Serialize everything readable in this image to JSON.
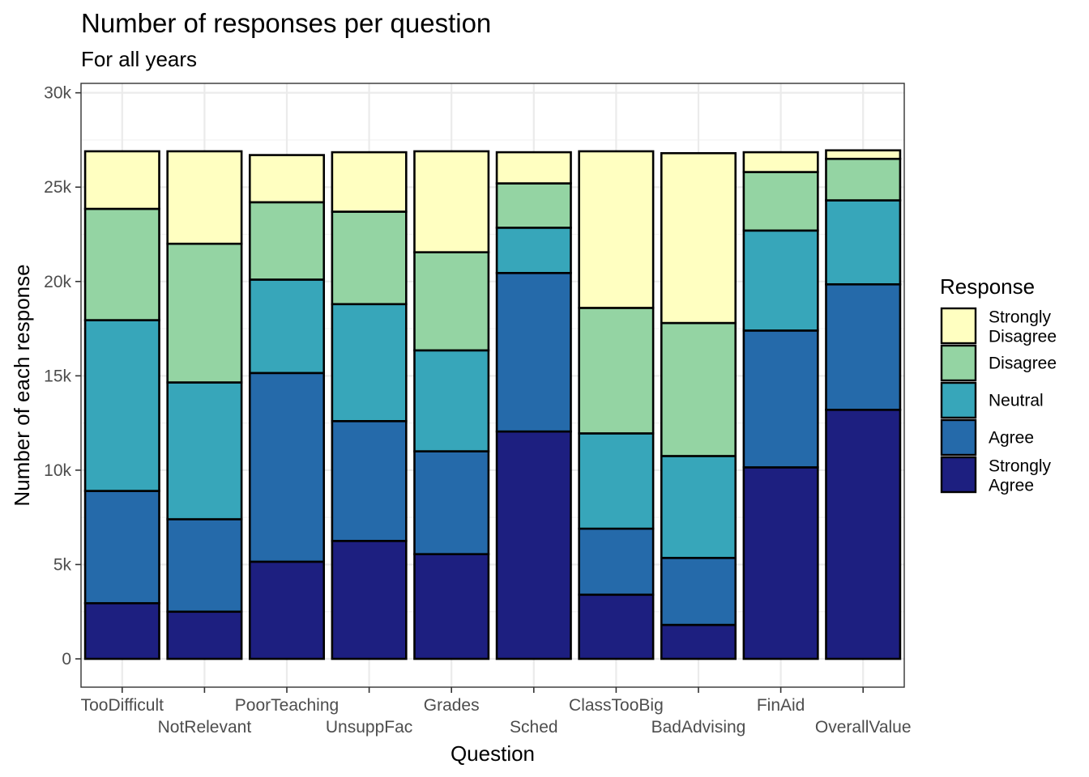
{
  "chart_data": {
    "type": "bar",
    "stacked": true,
    "title": "Number of responses per question",
    "subtitle": "For all years",
    "xlabel": "Question",
    "ylabel": "Number of each response",
    "ylim": [
      -1500,
      30500
    ],
    "y_ticks": [
      0,
      5000,
      10000,
      15000,
      20000,
      25000,
      30000
    ],
    "y_tick_labels": [
      "0",
      "5k",
      "10k",
      "15k",
      "20k",
      "25k",
      "30k"
    ],
    "grid": true,
    "legend_position": "right",
    "legend_title": "Response",
    "categories": [
      "TooDifficult",
      "NotRelevant",
      "PoorTeaching",
      "UnsuppFac",
      "Grades",
      "Sched",
      "ClassTooBig",
      "BadAdvising",
      "FinAid",
      "OverallValue"
    ],
    "series": [
      {
        "name": "Strongly Agree",
        "color": "#1d1f80",
        "values": [
          2950,
          2500,
          5150,
          6250,
          5550,
          12050,
          3400,
          1800,
          10150,
          13200
        ]
      },
      {
        "name": "Agree",
        "color": "#256aaa",
        "values": [
          5950,
          4900,
          10000,
          6350,
          5450,
          8400,
          3500,
          3550,
          7250,
          6650
        ]
      },
      {
        "name": "Neutral",
        "color": "#37a6ba",
        "values": [
          9050,
          7250,
          4950,
          6200,
          5350,
          2400,
          5050,
          5400,
          5300,
          4450
        ]
      },
      {
        "name": "Disagree",
        "color": "#94d4a3",
        "values": [
          5900,
          7350,
          4100,
          4900,
          5200,
          2350,
          6650,
          7050,
          3100,
          2200
        ]
      },
      {
        "name": "Strongly Disagree",
        "color": "#ffffc1",
        "values": [
          3050,
          4900,
          2500,
          3150,
          5350,
          1650,
          8300,
          9000,
          1050,
          450
        ]
      }
    ]
  }
}
